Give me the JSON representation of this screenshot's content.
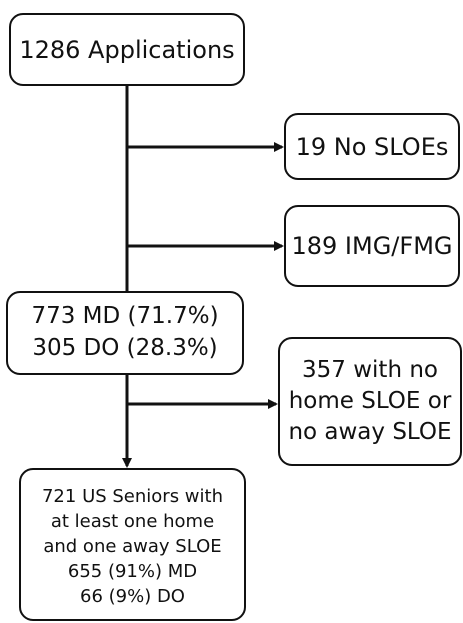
{
  "flowchart": {
    "applications": "1286 Applications",
    "no_sloes": "19 No SLOEs",
    "img_fmg": "189 IMG/FMG",
    "md_do": [
      "773 MD (71.7%)",
      "305 DO (28.3%)"
    ],
    "excluded_sloe": [
      "357 with no",
      "home SLOE or",
      "no away SLOE"
    ],
    "final": [
      "721 US Seniors with",
      "at least one home",
      "and one away SLOE",
      "655 (91%) MD",
      "66 (9%) DO"
    ]
  }
}
